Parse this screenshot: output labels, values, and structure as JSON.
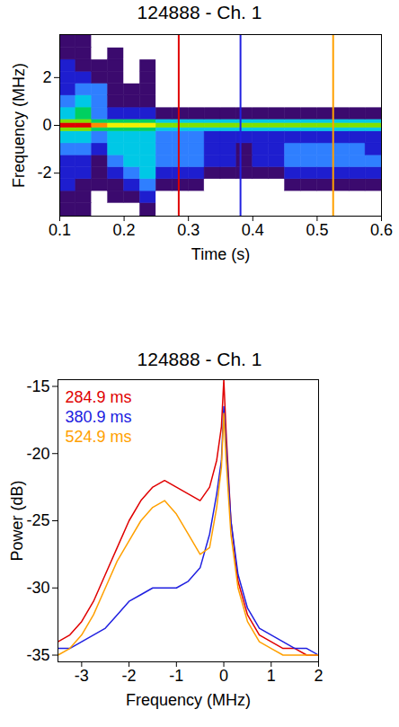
{
  "chart_data": [
    {
      "type": "heatmap",
      "title": "124888 - Ch. 1",
      "x_label": "Time (s)",
      "y_label": "Frequency (MHz)",
      "xlim": [
        0.1,
        0.6
      ],
      "xticks": [
        0.1,
        0.2,
        0.3,
        0.4,
        0.5,
        0.6
      ],
      "ylim": [
        -3.8,
        3.8
      ],
      "yticks": [
        -2,
        0,
        2
      ],
      "time_bins": [
        0.1,
        0.125,
        0.15,
        0.175,
        0.2,
        0.225,
        0.25,
        0.275,
        0.3,
        0.325,
        0.35,
        0.375,
        0.4,
        0.425,
        0.45,
        0.475,
        0.5,
        0.525,
        0.55,
        0.575,
        0.6
      ],
      "frequency_bins": [
        -3.8,
        -3.25,
        -2.75,
        -2.25,
        -1.75,
        -1.25,
        -0.75,
        -0.25,
        -0.1,
        0.1,
        0.25,
        0.75,
        1.25,
        1.75,
        2.25,
        2.75,
        3.25,
        3.8
      ],
      "power": [
        [
          1,
          1,
          0,
          0,
          0,
          1,
          0,
          0,
          0,
          0,
          0,
          0,
          0,
          0,
          0,
          0,
          0,
          0,
          0,
          0
        ],
        [
          1,
          1,
          0,
          1,
          1,
          2,
          0,
          0,
          0,
          0,
          0,
          0,
          0,
          0,
          0,
          0,
          0,
          0,
          0,
          0
        ],
        [
          2,
          1,
          1,
          1,
          2,
          3,
          1,
          1,
          1,
          0,
          0,
          0,
          0,
          0,
          1,
          1,
          1,
          1,
          1,
          1
        ],
        [
          2,
          2,
          1,
          2,
          3,
          4,
          2,
          2,
          2,
          1,
          1,
          1,
          1,
          1,
          2,
          2,
          2,
          2,
          2,
          2
        ],
        [
          2,
          2,
          1,
          3,
          4,
          4,
          3,
          3,
          3,
          2,
          2,
          1,
          2,
          2,
          3,
          3,
          3,
          3,
          3,
          3
        ],
        [
          3,
          3,
          2,
          4,
          4,
          4,
          3,
          3,
          3,
          2,
          2,
          1,
          2,
          2,
          3,
          3,
          3,
          3,
          3,
          2
        ],
        [
          4,
          4,
          3,
          4,
          4,
          4,
          3,
          3,
          3,
          2,
          2,
          2,
          2,
          2,
          2,
          2,
          2,
          2,
          2,
          2
        ],
        [
          6,
          6,
          5,
          5,
          5,
          5,
          4,
          4,
          4,
          4,
          4,
          4,
          4,
          4,
          4,
          4,
          4,
          4,
          4,
          4
        ],
        [
          9,
          9,
          8,
          7,
          7,
          7,
          6,
          6,
          6,
          6,
          6,
          6,
          6,
          6,
          6,
          6,
          6,
          6,
          6,
          6
        ],
        [
          6,
          6,
          5,
          5,
          5,
          5,
          4,
          4,
          4,
          4,
          4,
          4,
          4,
          4,
          4,
          4,
          4,
          4,
          4,
          4
        ],
        [
          4,
          5,
          3,
          2,
          2,
          2,
          1,
          1,
          1,
          1,
          1,
          1,
          1,
          1,
          1,
          1,
          1,
          1,
          1,
          1
        ],
        [
          3,
          4,
          3,
          1,
          1,
          1,
          0,
          0,
          0,
          0,
          0,
          0,
          0,
          0,
          0,
          0,
          0,
          0,
          0,
          0
        ],
        [
          2,
          3,
          3,
          1,
          1,
          1,
          0,
          0,
          0,
          0,
          0,
          0,
          0,
          0,
          0,
          0,
          0,
          0,
          0,
          0
        ],
        [
          2,
          2,
          1,
          1,
          0,
          1,
          0,
          0,
          0,
          0,
          0,
          0,
          0,
          0,
          0,
          0,
          0,
          0,
          0,
          0
        ],
        [
          2,
          1,
          1,
          1,
          0,
          1,
          0,
          0,
          0,
          0,
          0,
          0,
          0,
          0,
          0,
          0,
          0,
          0,
          0,
          0
        ],
        [
          1,
          1,
          0,
          1,
          0,
          0,
          0,
          0,
          0,
          0,
          0,
          0,
          0,
          0,
          0,
          0,
          0,
          0,
          0,
          0
        ],
        [
          1,
          1,
          0,
          0,
          0,
          0,
          0,
          0,
          0,
          0,
          0,
          0,
          0,
          0,
          0,
          0,
          0,
          0,
          0,
          0
        ]
      ],
      "vlines": [
        {
          "x": 0.2849,
          "color": "#e00000"
        },
        {
          "x": 0.3809,
          "color": "#2020e0"
        },
        {
          "x": 0.5249,
          "color": "#ffa000"
        }
      ]
    },
    {
      "type": "line",
      "title": "124888 - Ch. 1",
      "x_label": "Frequency (MHz)",
      "y_label": "Power (dB)",
      "xlim": [
        -3.5,
        2
      ],
      "xticks": [
        -3,
        -2,
        -1,
        0,
        1,
        2
      ],
      "ylim": [
        -35.5,
        -14.5
      ],
      "yticks": [
        -35,
        -30,
        -25,
        -20,
        -15
      ],
      "legend": "top-left",
      "x": [
        -3.5,
        -3.25,
        -3,
        -2.75,
        -2.5,
        -2.25,
        -2,
        -1.75,
        -1.5,
        -1.25,
        -1,
        -0.75,
        -0.5,
        -0.3,
        -0.15,
        -0.05,
        0,
        0.05,
        0.15,
        0.3,
        0.5,
        0.75,
        1,
        1.25,
        1.5,
        1.75,
        2
      ],
      "series": [
        {
          "name": "284.9 ms",
          "color": "#e00000",
          "values": [
            -34,
            -33.5,
            -32.5,
            -31,
            -29,
            -27,
            -25,
            -23.5,
            -22.5,
            -22,
            -22.5,
            -23,
            -23.5,
            -22.5,
            -20.5,
            -18,
            -14.5,
            -18.5,
            -25,
            -29.5,
            -32,
            -33.5,
            -34,
            -34.5,
            -34.5,
            -35,
            -35
          ]
        },
        {
          "name": "380.9 ms",
          "color": "#2020e0",
          "values": [
            -34.5,
            -34.5,
            -34,
            -33.5,
            -33,
            -32,
            -31,
            -30.5,
            -30,
            -30,
            -30,
            -29.5,
            -28.5,
            -26,
            -23,
            -20.5,
            -16.5,
            -19.5,
            -25,
            -29,
            -31.5,
            -33,
            -33.5,
            -34,
            -34.5,
            -34.5,
            -35
          ]
        },
        {
          "name": "524.9 ms",
          "color": "#ffa000",
          "values": [
            -35,
            -34.5,
            -33.5,
            -32,
            -30,
            -28,
            -26.5,
            -25,
            -24,
            -23.5,
            -24.5,
            -26,
            -27.5,
            -27,
            -24,
            -21,
            -17,
            -20.5,
            -26,
            -30,
            -32.5,
            -34,
            -34.5,
            -35,
            -35,
            -35,
            -35
          ]
        }
      ]
    }
  ]
}
